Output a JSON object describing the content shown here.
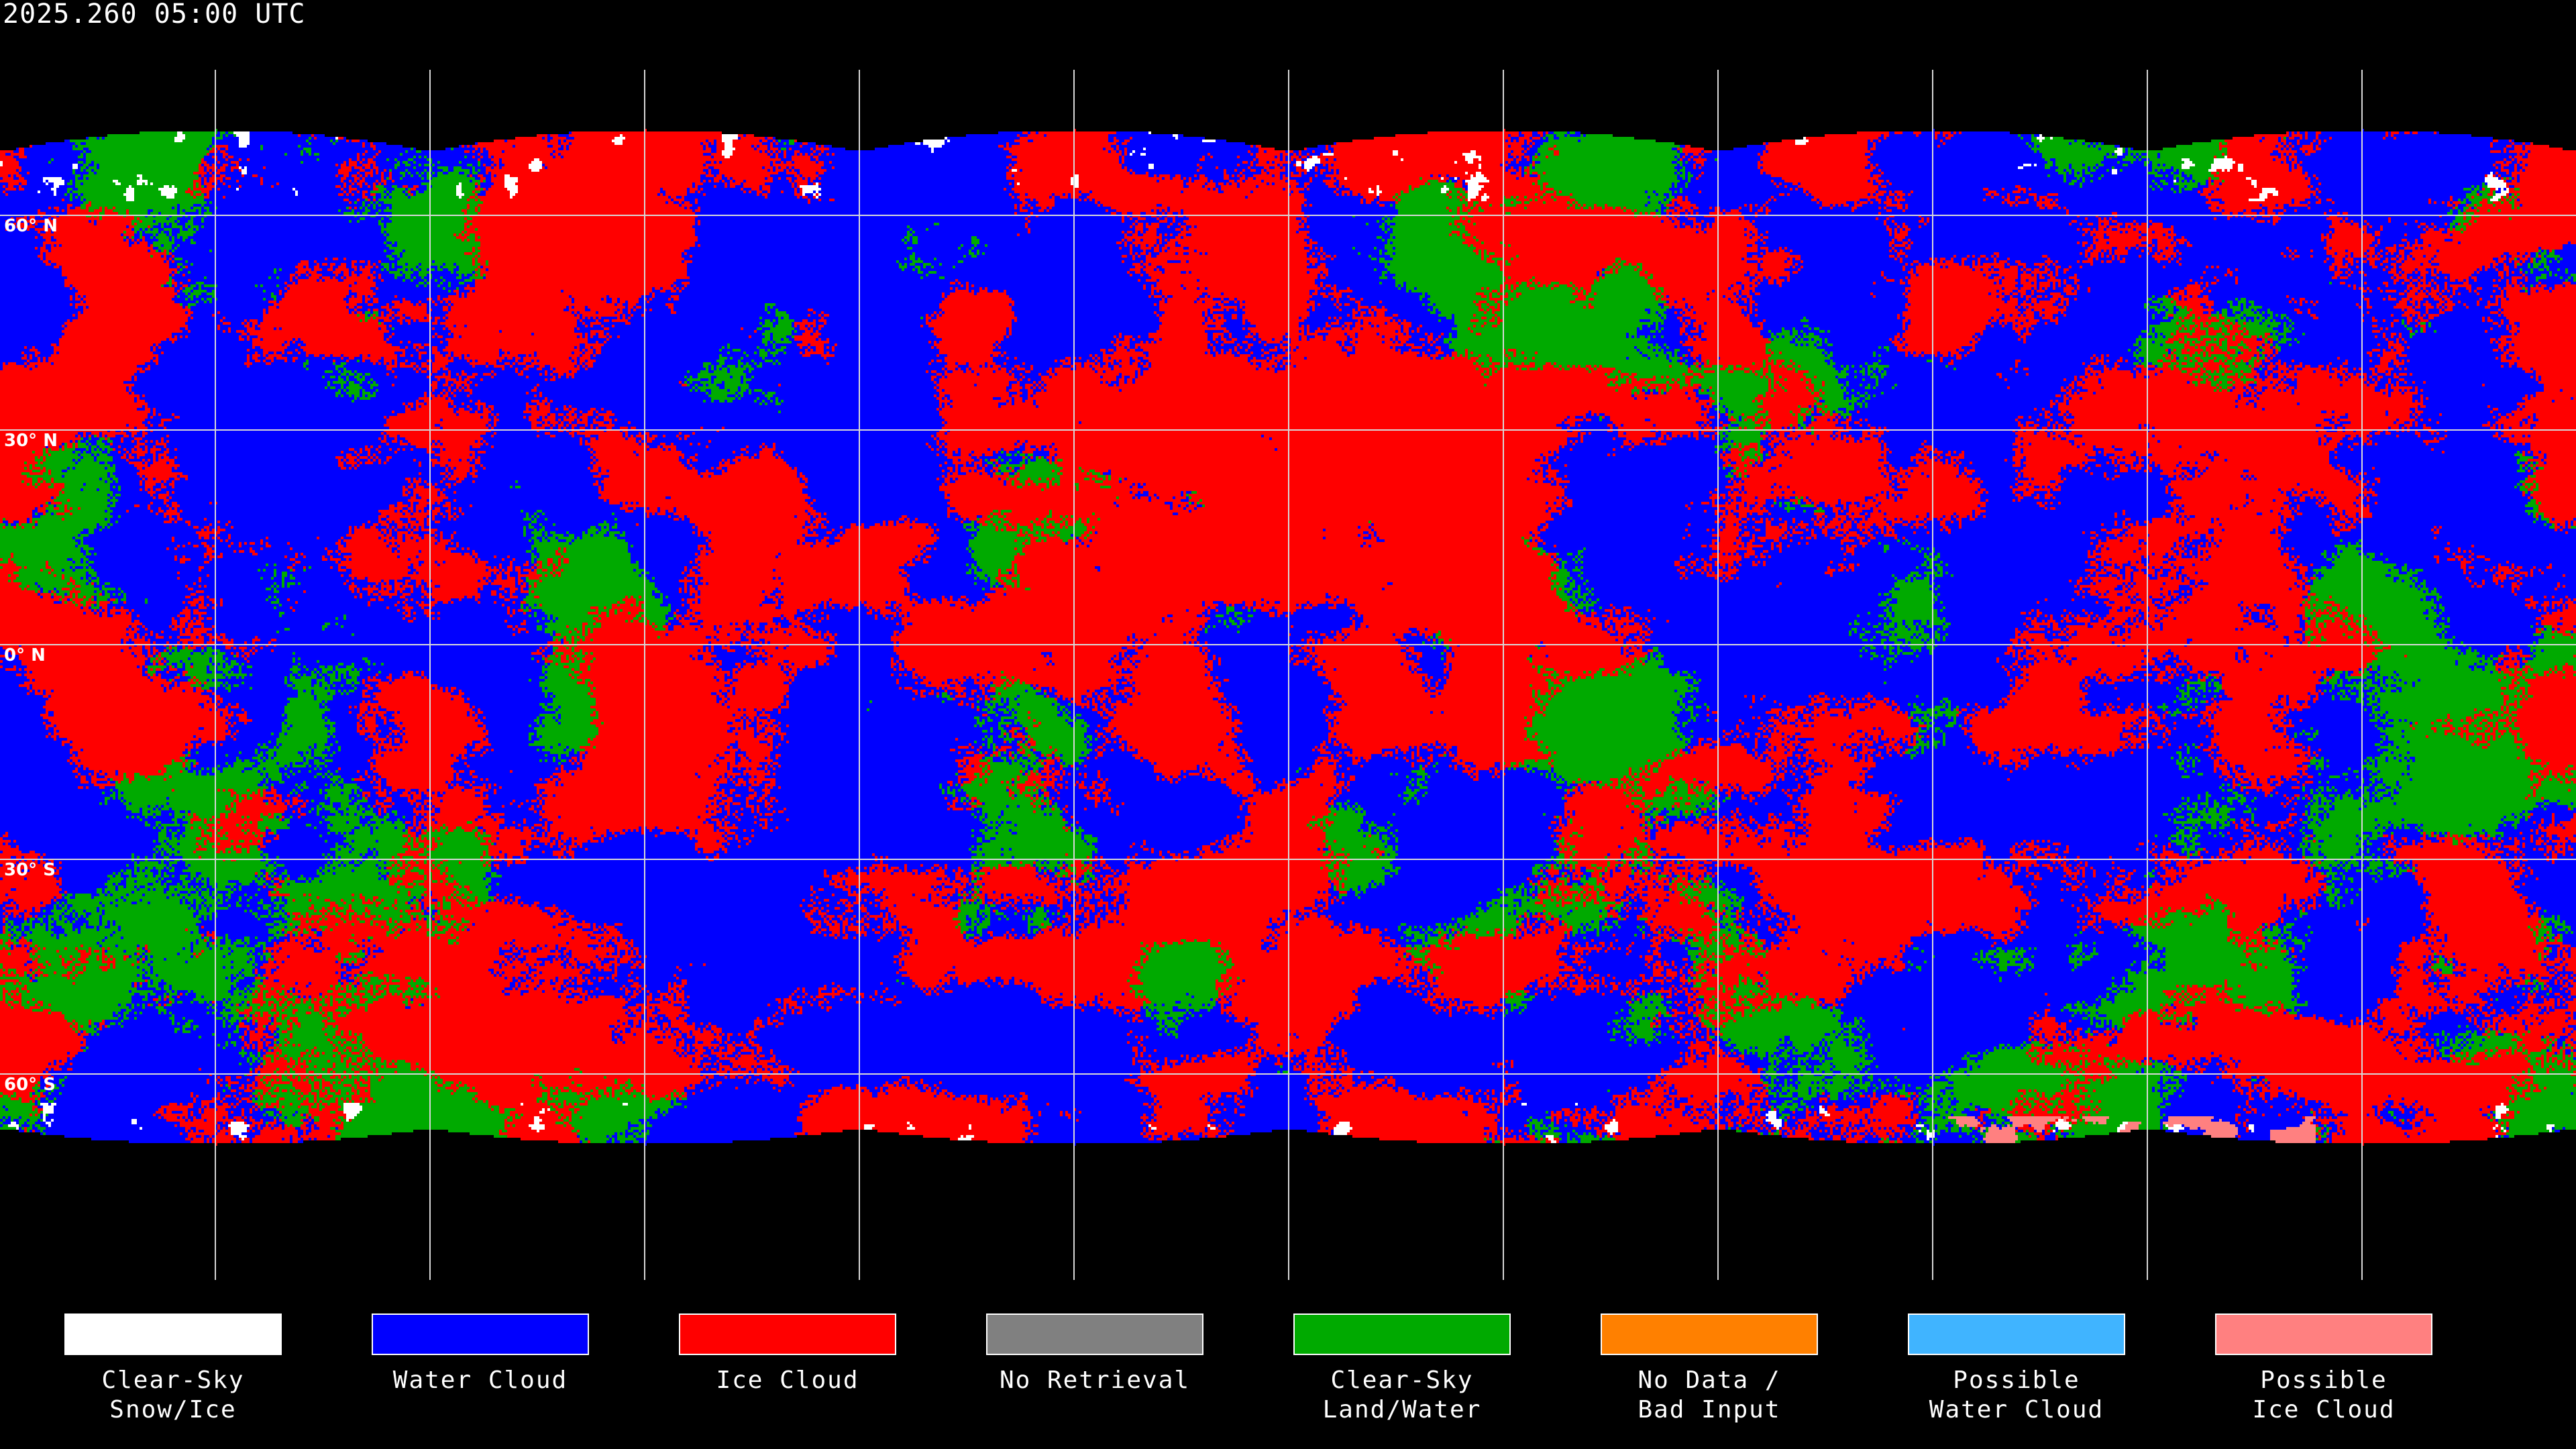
{
  "title": "2025.260 05:00 UTC",
  "latitude_labels": [
    "60° N",
    "30° N",
    "0° N",
    "30° S",
    "60° S"
  ],
  "legend": [
    {
      "label": "Clear-Sky\nSnow/Ice",
      "color": "#ffffff"
    },
    {
      "label": "Water Cloud",
      "color": "#0000ff"
    },
    {
      "label": "Ice Cloud",
      "color": "#ff0000"
    },
    {
      "label": "No Retrieval",
      "color": "#808080"
    },
    {
      "label": "Clear-Sky\nLand/Water",
      "color": "#00aa00"
    },
    {
      "label": "No Data /\nBad Input",
      "color": "#ff8000"
    },
    {
      "label": "Possible\nWater Cloud",
      "color": "#40b4ff"
    },
    {
      "label": "Possible\nIce Cloud",
      "color": "#ff8080"
    }
  ]
}
